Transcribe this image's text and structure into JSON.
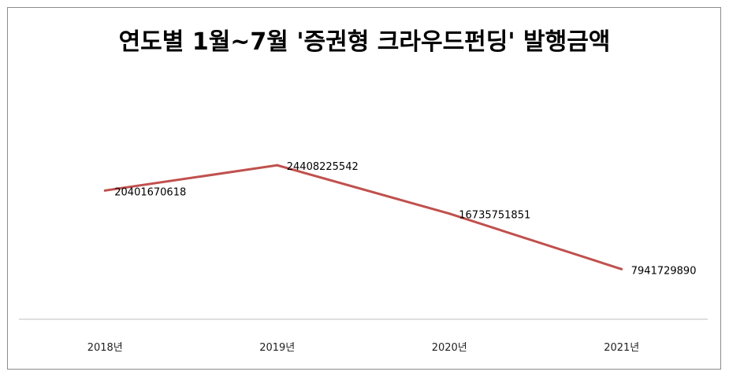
{
  "chart_data": {
    "type": "line",
    "title": "연도별 1월~7월 '증권형 크라우드펀딩' 발행금액",
    "xlabel": "",
    "ylabel": "",
    "categories": [
      "2018년",
      "2019년",
      "2020년",
      "2021년"
    ],
    "series": [
      {
        "values": [
          20401670618,
          24408225542,
          16735751851,
          7941729890
        ]
      }
    ],
    "data_labels": [
      "20401670618",
      "24408225542",
      "16735751851",
      "7941729890"
    ],
    "line_color": "#c0504d",
    "grid": false,
    "legend": "none"
  }
}
